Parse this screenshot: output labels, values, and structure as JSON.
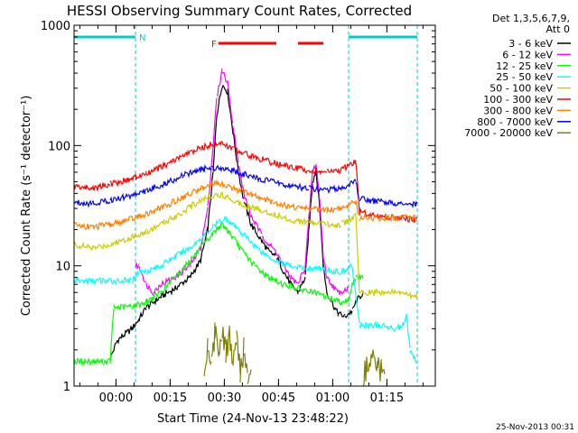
{
  "chart_data": {
    "type": "line",
    "title": "HESSI Observing Summary Count Rates, Corrected",
    "xlabel": "Start Time (24-Nov-13 23:48:22)",
    "ylabel": "Corrected Count Rate (s⁻¹ detector⁻¹)",
    "yscale": "log",
    "ylim": [
      1,
      1000
    ],
    "xlim_minutes": [
      0,
      100
    ],
    "y_ticks": [
      "1",
      "10",
      "100",
      "1000"
    ],
    "x_ticks": [
      {
        "label": "00:00",
        "t": 11.6
      },
      {
        "label": "00:15",
        "t": 26.6
      },
      {
        "label": "00:30",
        "t": 41.6
      },
      {
        "label": "00:45",
        "t": 56.6
      },
      {
        "label": "01:00",
        "t": 71.6
      },
      {
        "label": "01:15",
        "t": 86.6
      }
    ],
    "legend_header": [
      "Det 1,3,5,6,7,9,",
      "Att 0"
    ],
    "legend_position": "right",
    "footer_date": "25-Nov-2013 00:31",
    "annotations": [
      {
        "label": "N",
        "type": "night",
        "intervals": [
          [
            0,
            17
          ],
          [
            76,
            95
          ]
        ],
        "color": "#00cccc"
      },
      {
        "label": "F",
        "type": "flare",
        "intervals": [
          [
            40,
            56
          ],
          [
            62,
            69
          ]
        ],
        "color": "#ff0000"
      }
    ],
    "vertical_markers": [
      17,
      76,
      95
    ],
    "series": [
      {
        "name": "3 - 6 keV",
        "color": "#000000",
        "points": [
          [
            10,
            1.7
          ],
          [
            12,
            2.4
          ],
          [
            16,
            3
          ],
          [
            18,
            3.6
          ],
          [
            20,
            4.5
          ],
          [
            24,
            5.5
          ],
          [
            28,
            6.5
          ],
          [
            32,
            8
          ],
          [
            35,
            11
          ],
          [
            37,
            20
          ],
          [
            38.5,
            60
          ],
          [
            39.5,
            180
          ],
          [
            41,
            320
          ],
          [
            42.5,
            280
          ],
          [
            44,
            130
          ],
          [
            45.5,
            60
          ],
          [
            47,
            35
          ],
          [
            49,
            22
          ],
          [
            52,
            16
          ],
          [
            54,
            13
          ],
          [
            56,
            12
          ],
          [
            58,
            9
          ],
          [
            60,
            7
          ],
          [
            62,
            6
          ],
          [
            64,
            8
          ],
          [
            65,
            20
          ],
          [
            66,
            50
          ],
          [
            67,
            62
          ],
          [
            68,
            30
          ],
          [
            69,
            10
          ],
          [
            70,
            6
          ],
          [
            73,
            4
          ],
          [
            75,
            3.8
          ],
          [
            77,
            4.2
          ],
          [
            78,
            5
          ],
          [
            80,
            6
          ]
        ]
      },
      {
        "name": "6 - 12 keV",
        "color": "#ff00ff",
        "points": [
          [
            17,
            10
          ],
          [
            18,
            10
          ],
          [
            20,
            7
          ],
          [
            22,
            6
          ],
          [
            24,
            7
          ],
          [
            28,
            8
          ],
          [
            32,
            10
          ],
          [
            35,
            14
          ],
          [
            37,
            30
          ],
          [
            38.5,
            100
          ],
          [
            39.5,
            250
          ],
          [
            41,
            420
          ],
          [
            42.5,
            330
          ],
          [
            44,
            150
          ],
          [
            45.5,
            70
          ],
          [
            47,
            40
          ],
          [
            49,
            26
          ],
          [
            52,
            18
          ],
          [
            54,
            15
          ],
          [
            56,
            13
          ],
          [
            58,
            10
          ],
          [
            60,
            8
          ],
          [
            62,
            7
          ],
          [
            64,
            10
          ],
          [
            65,
            25
          ],
          [
            66,
            60
          ],
          [
            67,
            70
          ],
          [
            68,
            35
          ],
          [
            69,
            12
          ],
          [
            70,
            8
          ],
          [
            73,
            6
          ],
          [
            76,
            6.5
          ]
        ]
      },
      {
        "name": "12 - 25 keV",
        "color": "#00ff00",
        "points": [
          [
            0,
            1.6
          ],
          [
            8,
            1.6
          ],
          [
            10,
            1.6
          ],
          [
            11,
            4.5
          ],
          [
            16,
            4.6
          ],
          [
            20,
            5
          ],
          [
            24,
            6
          ],
          [
            28,
            8
          ],
          [
            32,
            11
          ],
          [
            36,
            15
          ],
          [
            38,
            18
          ],
          [
            40,
            21
          ],
          [
            41,
            22
          ],
          [
            43,
            19
          ],
          [
            46,
            14
          ],
          [
            50,
            10
          ],
          [
            54,
            8
          ],
          [
            58,
            7
          ],
          [
            62,
            6.5
          ],
          [
            66,
            6
          ],
          [
            70,
            5.5
          ],
          [
            74,
            5
          ],
          [
            76,
            5.2
          ],
          [
            77,
            7
          ],
          [
            78,
            8
          ],
          [
            80,
            8
          ]
        ]
      },
      {
        "name": "25 - 50 keV",
        "color": "#00ffff",
        "points": [
          [
            0,
            7.5
          ],
          [
            10,
            7.5
          ],
          [
            16,
            7.5
          ],
          [
            18,
            9
          ],
          [
            20,
            9
          ],
          [
            24,
            10
          ],
          [
            28,
            12
          ],
          [
            32,
            14
          ],
          [
            36,
            18
          ],
          [
            40,
            23
          ],
          [
            42,
            25
          ],
          [
            44,
            22
          ],
          [
            48,
            17
          ],
          [
            52,
            13
          ],
          [
            56,
            11
          ],
          [
            60,
            10
          ],
          [
            64,
            9.5
          ],
          [
            68,
            9.5
          ],
          [
            72,
            9
          ],
          [
            75,
            9
          ],
          [
            76,
            9.5
          ],
          [
            77,
            10
          ],
          [
            79,
            3.2
          ],
          [
            84,
            3.2
          ],
          [
            89,
            3
          ],
          [
            91,
            3.2
          ],
          [
            92,
            4
          ],
          [
            93,
            2
          ],
          [
            95,
            1.5
          ]
        ]
      },
      {
        "name": "50 - 100 keV",
        "color": "#cccc00",
        "points": [
          [
            0,
            15
          ],
          [
            5,
            14
          ],
          [
            10,
            15
          ],
          [
            15,
            17
          ],
          [
            20,
            19
          ],
          [
            25,
            23
          ],
          [
            30,
            28
          ],
          [
            35,
            35
          ],
          [
            38,
            38
          ],
          [
            40,
            39
          ],
          [
            42,
            38
          ],
          [
            45,
            34
          ],
          [
            50,
            30
          ],
          [
            55,
            27
          ],
          [
            60,
            24
          ],
          [
            65,
            23
          ],
          [
            70,
            22
          ],
          [
            74,
            22
          ],
          [
            76,
            24
          ],
          [
            78,
            26
          ],
          [
            79,
            6
          ],
          [
            84,
            6
          ],
          [
            90,
            6
          ],
          [
            95,
            5.5
          ]
        ]
      },
      {
        "name": "100 - 300 keV",
        "color": "#ff0000",
        "points": [
          [
            0,
            46
          ],
          [
            5,
            44
          ],
          [
            10,
            48
          ],
          [
            15,
            52
          ],
          [
            20,
            58
          ],
          [
            25,
            68
          ],
          [
            30,
            82
          ],
          [
            35,
            95
          ],
          [
            38,
            102
          ],
          [
            40,
            104
          ],
          [
            42,
            100
          ],
          [
            45,
            92
          ],
          [
            50,
            80
          ],
          [
            55,
            72
          ],
          [
            60,
            66
          ],
          [
            65,
            62
          ],
          [
            70,
            60
          ],
          [
            74,
            62
          ],
          [
            76,
            68
          ],
          [
            78,
            75
          ],
          [
            79,
            28
          ],
          [
            84,
            26
          ],
          [
            90,
            25
          ],
          [
            95,
            24
          ]
        ]
      },
      {
        "name": "300 - 800 keV",
        "color": "#ff8000",
        "points": [
          [
            0,
            22
          ],
          [
            5,
            21
          ],
          [
            10,
            22
          ],
          [
            15,
            24
          ],
          [
            20,
            27
          ],
          [
            25,
            31
          ],
          [
            30,
            37
          ],
          [
            35,
            44
          ],
          [
            38,
            47
          ],
          [
            40,
            48
          ],
          [
            42,
            47
          ],
          [
            45,
            43
          ],
          [
            50,
            38
          ],
          [
            55,
            34
          ],
          [
            60,
            31
          ],
          [
            65,
            30
          ],
          [
            70,
            29
          ],
          [
            74,
            30
          ],
          [
            76,
            32
          ],
          [
            78,
            34
          ],
          [
            79,
            25
          ],
          [
            84,
            25
          ],
          [
            90,
            25
          ],
          [
            95,
            25
          ]
        ]
      },
      {
        "name": "800 - 7000 keV",
        "color": "#0000ff",
        "points": [
          [
            0,
            34
          ],
          [
            5,
            33
          ],
          [
            10,
            35
          ],
          [
            15,
            38
          ],
          [
            20,
            42
          ],
          [
            25,
            48
          ],
          [
            30,
            56
          ],
          [
            35,
            63
          ],
          [
            38,
            65
          ],
          [
            40,
            66
          ],
          [
            42,
            65
          ],
          [
            45,
            60
          ],
          [
            50,
            54
          ],
          [
            55,
            50
          ],
          [
            60,
            46
          ],
          [
            65,
            44
          ],
          [
            70,
            43
          ],
          [
            74,
            44
          ],
          [
            76,
            47
          ],
          [
            78,
            50
          ],
          [
            79,
            36
          ],
          [
            84,
            34
          ],
          [
            90,
            33
          ],
          [
            95,
            32
          ]
        ]
      },
      {
        "name": "7000 - 20000 keV",
        "color": "#808000",
        "points": [
          [
            36,
            1.2
          ],
          [
            37,
            2.2
          ],
          [
            38,
            1.6
          ],
          [
            39,
            2.8
          ],
          [
            40,
            2
          ],
          [
            41,
            3
          ],
          [
            42,
            1.8
          ],
          [
            43,
            2.6
          ],
          [
            44,
            1.5
          ],
          [
            45,
            2.4
          ],
          [
            46,
            1.3
          ],
          [
            47,
            2
          ],
          [
            48,
            1.2
          ],
          [
            49,
            1.6
          ],
          [
            80,
            1.2
          ],
          [
            82,
            1.8
          ],
          [
            84,
            1.5
          ],
          [
            86,
            1.2
          ]
        ]
      }
    ]
  }
}
